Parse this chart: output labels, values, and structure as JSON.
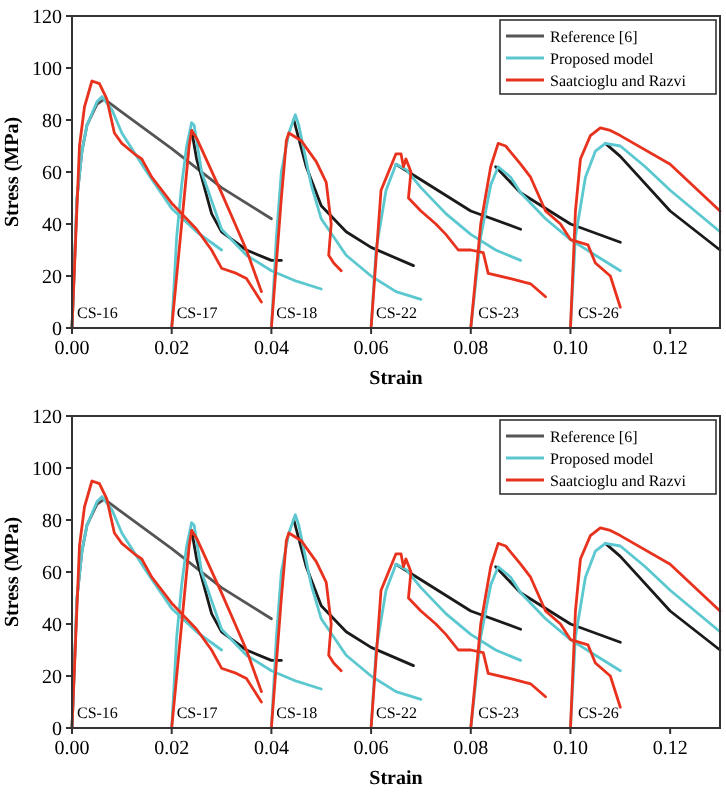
{
  "chart_data": [
    {
      "type": "line",
      "xlabel": "Strain",
      "ylabel": "Stress (MPa)",
      "xlim": [
        0,
        0.13
      ],
      "ylim": [
        0,
        120
      ],
      "xticks": [
        {
          "value": 0,
          "label": "0.00"
        },
        {
          "value": 0.02,
          "label": "0.02"
        },
        {
          "value": 0.04,
          "label": "0.04"
        },
        {
          "value": 0.06,
          "label": "0.06"
        },
        {
          "value": 0.08,
          "label": "0.08"
        },
        {
          "value": 0.1,
          "label": "0.10"
        },
        {
          "value": 0.12,
          "label": "0.12"
        }
      ],
      "yticks": [
        0,
        20,
        40,
        60,
        80,
        100,
        120
      ],
      "grid": false,
      "legend": "top right",
      "marker": "none",
      "line_style": "solid",
      "annotations": [
        {
          "text": "CS-16",
          "x": 0.001,
          "y": 4
        },
        {
          "text": "CS-17",
          "x": 0.021,
          "y": 4
        },
        {
          "text": "CS-18",
          "x": 0.041,
          "y": 4
        },
        {
          "text": "CS-22",
          "x": 0.061,
          "y": 4
        },
        {
          "text": "CS-23",
          "x": 0.0815,
          "y": 4
        },
        {
          "text": "CS-26",
          "x": 0.1015,
          "y": 4
        }
      ],
      "series": [
        {
          "name": "Reference [6]",
          "color": "#555555",
          "x": [
            0,
            0.001,
            0.002,
            0.003,
            0.005,
            0.0065,
            0.01,
            0.02,
            0.03,
            0.04
          ],
          "values": [
            0,
            50,
            68,
            78,
            86,
            88,
            83,
            69,
            54,
            42
          ]
        },
        {
          "color": "#1a1a1a",
          "x": [
            0.024,
            0.025,
            0.028,
            0.03,
            0.035,
            0.04,
            0.042
          ],
          "values": [
            76,
            65,
            44,
            37,
            30,
            26,
            26
          ]
        },
        {
          "color": "#1a1a1a",
          "x": [
            0.0445,
            0.047,
            0.05,
            0.055,
            0.06,
            0.0685
          ],
          "values": [
            80,
            62,
            47,
            37,
            31,
            24
          ]
        },
        {
          "color": "#1a1a1a",
          "x": [
            0.065,
            0.07,
            0.08,
            0.09
          ],
          "values": [
            63,
            57,
            45,
            38
          ]
        },
        {
          "color": "#1a1a1a",
          "x": [
            0.085,
            0.09,
            0.1,
            0.11
          ],
          "values": [
            62,
            52,
            40,
            33
          ]
        },
        {
          "color": "#1a1a1a",
          "x": [
            0.107,
            0.11,
            0.12,
            0.13
          ],
          "values": [
            71,
            66,
            45,
            30
          ]
        },
        {
          "name": "Proposed model",
          "color": "#5bc8d0",
          "x": [
            0,
            0.001,
            0.002,
            0.003,
            0.005,
            0.006,
            0.008,
            0.01,
            0.015,
            0.02,
            0.025,
            0.03
          ],
          "values": [
            0,
            50,
            68,
            78,
            87,
            89,
            84,
            75,
            60,
            46,
            37,
            30
          ]
        },
        {
          "color": "#5bc8d0",
          "x": [
            0.02,
            0.021,
            0.022,
            0.023,
            0.024,
            0.0245,
            0.026,
            0.03,
            0.035,
            0.04,
            0.045,
            0.05
          ],
          "values": [
            0,
            35,
            55,
            70,
            79,
            78,
            60,
            38,
            28,
            22,
            18,
            15
          ]
        },
        {
          "color": "#5bc8d0",
          "x": [
            0.04,
            0.041,
            0.042,
            0.0435,
            0.0448,
            0.0455,
            0.048,
            0.05,
            0.055,
            0.06,
            0.065,
            0.07
          ],
          "values": [
            0,
            35,
            60,
            75,
            82,
            78,
            55,
            42,
            28,
            20,
            14,
            11
          ]
        },
        {
          "color": "#5bc8d0",
          "x": [
            0.06,
            0.061,
            0.063,
            0.065,
            0.067,
            0.07,
            0.075,
            0.08,
            0.085,
            0.09
          ],
          "values": [
            0,
            30,
            53,
            63,
            61,
            54,
            44,
            36,
            30,
            26
          ]
        },
        {
          "color": "#5bc8d0",
          "x": [
            0.08,
            0.082,
            0.084,
            0.0855,
            0.088,
            0.09,
            0.095,
            0.1,
            0.105,
            0.11
          ],
          "values": [
            0,
            35,
            55,
            62,
            58,
            52,
            42,
            34,
            28,
            22
          ]
        },
        {
          "color": "#5bc8d0",
          "x": [
            0.1,
            0.101,
            0.103,
            0.105,
            0.107,
            0.11,
            0.115,
            0.12,
            0.125,
            0.13
          ],
          "values": [
            0,
            35,
            58,
            68,
            71,
            70,
            62,
            53,
            45,
            37
          ]
        },
        {
          "name": "Saatcioglu and Razvi",
          "color": "#e8321e",
          "x": [
            0,
            0.0015,
            0.0025,
            0.004,
            0.0055,
            0.007,
            0.0085,
            0.01,
            0.0125,
            0.014,
            0.016,
            0.02,
            0.025,
            0.028,
            0.03,
            0.033,
            0.035,
            0.038
          ],
          "values": [
            0,
            70,
            85,
            95,
            94,
            88,
            75,
            71,
            67,
            65,
            58,
            48,
            38,
            30,
            23,
            21,
            19,
            10
          ]
        },
        {
          "color": "#e8321e",
          "x": [
            0.02,
            0.022,
            0.0235,
            0.024,
            0.025,
            0.03,
            0.035,
            0.038
          ],
          "values": [
            0,
            40,
            70,
            76,
            73,
            52,
            30,
            14
          ]
        },
        {
          "color": "#e8321e",
          "x": [
            0.04,
            0.042,
            0.043,
            0.0435,
            0.046,
            0.049,
            0.051,
            0.052,
            0.0515,
            0.0525,
            0.054
          ],
          "values": [
            0,
            50,
            72,
            75,
            72,
            64,
            56,
            40,
            28,
            25,
            22
          ]
        },
        {
          "color": "#e8321e",
          "x": [
            0.06,
            0.0615,
            0.062,
            0.0635,
            0.065,
            0.066,
            0.0665,
            0.067,
            0.068,
            0.0675,
            0.07,
            0.073,
            0.075,
            0.0775,
            0.08,
            0.0825,
            0.0835,
            0.088,
            0.092,
            0.095
          ],
          "values": [
            0,
            40,
            53,
            60,
            67,
            67,
            62,
            65,
            60,
            50,
            45,
            40,
            36,
            30,
            30,
            29,
            21,
            19,
            17,
            12
          ]
        },
        {
          "color": "#e8321e",
          "x": [
            0.08,
            0.082,
            0.084,
            0.0855,
            0.087,
            0.09,
            0.092,
            0.095,
            0.098,
            0.1,
            0.1035,
            0.105,
            0.108,
            0.11
          ],
          "values": [
            0,
            40,
            62,
            71,
            70,
            63,
            58,
            45,
            40,
            34,
            32,
            25,
            20,
            8
          ]
        },
        {
          "color": "#e8321e",
          "x": [
            0.1,
            0.101,
            0.102,
            0.104,
            0.106,
            0.108,
            0.11,
            0.12,
            0.13
          ],
          "values": [
            0,
            45,
            65,
            74,
            77,
            76,
            74,
            63,
            45
          ]
        }
      ]
    },
    {
      "type": "line",
      "xlabel": "Strain",
      "ylabel": "Stress (MPa)",
      "xlim": [
        0,
        0.13
      ],
      "ylim": [
        0,
        120
      ],
      "xticks": [
        {
          "value": 0,
          "label": "0.00"
        },
        {
          "value": 0.02,
          "label": "0.02"
        },
        {
          "value": 0.04,
          "label": "0.04"
        },
        {
          "value": 0.06,
          "label": "0.06"
        },
        {
          "value": 0.08,
          "label": "0.08"
        },
        {
          "value": 0.1,
          "label": "0.10"
        },
        {
          "value": 0.12,
          "label": "0.12"
        }
      ],
      "yticks": [
        0,
        20,
        40,
        60,
        80,
        100,
        120
      ],
      "grid": false,
      "legend": "top right",
      "marker": "none",
      "line_style": "solid",
      "annotations": [
        {
          "text": "CS-16",
          "x": 0.001,
          "y": 4
        },
        {
          "text": "CS-17",
          "x": 0.021,
          "y": 4
        },
        {
          "text": "CS-18",
          "x": 0.041,
          "y": 4
        },
        {
          "text": "CS-22",
          "x": 0.061,
          "y": 4
        },
        {
          "text": "CS-23",
          "x": 0.0815,
          "y": 4
        },
        {
          "text": "CS-26",
          "x": 0.1015,
          "y": 4
        }
      ],
      "series": [
        {
          "name": "Reference [6]",
          "color": "#555555",
          "x": [
            0,
            0.001,
            0.002,
            0.003,
            0.005,
            0.0065,
            0.01,
            0.02,
            0.03,
            0.04
          ],
          "values": [
            0,
            50,
            68,
            78,
            86,
            88,
            83,
            69,
            54,
            42
          ]
        },
        {
          "color": "#1a1a1a",
          "x": [
            0.024,
            0.025,
            0.028,
            0.03,
            0.035,
            0.04,
            0.042
          ],
          "values": [
            76,
            65,
            44,
            37,
            30,
            26,
            26
          ]
        },
        {
          "color": "#1a1a1a",
          "x": [
            0.0445,
            0.047,
            0.05,
            0.055,
            0.06,
            0.0685
          ],
          "values": [
            80,
            62,
            47,
            37,
            31,
            24
          ]
        },
        {
          "color": "#1a1a1a",
          "x": [
            0.065,
            0.07,
            0.08,
            0.09
          ],
          "values": [
            63,
            57,
            45,
            38
          ]
        },
        {
          "color": "#1a1a1a",
          "x": [
            0.085,
            0.09,
            0.1,
            0.11
          ],
          "values": [
            62,
            52,
            40,
            33
          ]
        },
        {
          "color": "#1a1a1a",
          "x": [
            0.107,
            0.11,
            0.12,
            0.13
          ],
          "values": [
            71,
            66,
            45,
            30
          ]
        },
        {
          "name": "Proposed model",
          "color": "#5bc8d0",
          "x": [
            0,
            0.001,
            0.002,
            0.003,
            0.005,
            0.006,
            0.008,
            0.01,
            0.015,
            0.02,
            0.025,
            0.03
          ],
          "values": [
            0,
            50,
            68,
            78,
            87,
            89,
            84,
            75,
            60,
            46,
            37,
            30
          ]
        },
        {
          "color": "#5bc8d0",
          "x": [
            0.02,
            0.021,
            0.022,
            0.023,
            0.024,
            0.0245,
            0.026,
            0.03,
            0.035,
            0.04,
            0.045,
            0.05
          ],
          "values": [
            0,
            35,
            55,
            70,
            79,
            78,
            60,
            38,
            28,
            22,
            18,
            15
          ]
        },
        {
          "color": "#5bc8d0",
          "x": [
            0.04,
            0.041,
            0.042,
            0.0435,
            0.0448,
            0.0455,
            0.048,
            0.05,
            0.055,
            0.06,
            0.065,
            0.07
          ],
          "values": [
            0,
            35,
            60,
            75,
            82,
            78,
            55,
            42,
            28,
            20,
            14,
            11
          ]
        },
        {
          "color": "#5bc8d0",
          "x": [
            0.06,
            0.061,
            0.063,
            0.065,
            0.067,
            0.07,
            0.075,
            0.08,
            0.085,
            0.09
          ],
          "values": [
            0,
            30,
            53,
            63,
            61,
            54,
            44,
            36,
            30,
            26
          ]
        },
        {
          "color": "#5bc8d0",
          "x": [
            0.08,
            0.082,
            0.084,
            0.0855,
            0.088,
            0.09,
            0.095,
            0.1,
            0.105,
            0.11
          ],
          "values": [
            0,
            35,
            55,
            62,
            58,
            52,
            42,
            34,
            28,
            22
          ]
        },
        {
          "color": "#5bc8d0",
          "x": [
            0.1,
            0.101,
            0.103,
            0.105,
            0.107,
            0.11,
            0.115,
            0.12,
            0.125,
            0.13
          ],
          "values": [
            0,
            35,
            58,
            68,
            71,
            70,
            62,
            53,
            45,
            37
          ]
        },
        {
          "name": "Saatcioglu and Razvi",
          "color": "#e8321e",
          "x": [
            0,
            0.0015,
            0.0025,
            0.004,
            0.0055,
            0.007,
            0.0085,
            0.01,
            0.0125,
            0.014,
            0.016,
            0.02,
            0.025,
            0.028,
            0.03,
            0.033,
            0.035,
            0.038
          ],
          "values": [
            0,
            70,
            85,
            95,
            94,
            88,
            75,
            71,
            67,
            65,
            58,
            48,
            38,
            30,
            23,
            21,
            19,
            10
          ]
        },
        {
          "color": "#e8321e",
          "x": [
            0.02,
            0.022,
            0.0235,
            0.024,
            0.025,
            0.03,
            0.035,
            0.038
          ],
          "values": [
            0,
            40,
            70,
            76,
            73,
            52,
            30,
            14
          ]
        },
        {
          "color": "#e8321e",
          "x": [
            0.04,
            0.042,
            0.043,
            0.0435,
            0.046,
            0.049,
            0.051,
            0.052,
            0.0515,
            0.0525,
            0.054
          ],
          "values": [
            0,
            50,
            72,
            75,
            72,
            64,
            56,
            40,
            28,
            25,
            22
          ]
        },
        {
          "color": "#e8321e",
          "x": [
            0.06,
            0.0615,
            0.062,
            0.0635,
            0.065,
            0.066,
            0.0665,
            0.067,
            0.068,
            0.0675,
            0.07,
            0.073,
            0.075,
            0.0775,
            0.08,
            0.0825,
            0.0835,
            0.088,
            0.092,
            0.095
          ],
          "values": [
            0,
            40,
            53,
            60,
            67,
            67,
            62,
            65,
            60,
            50,
            45,
            40,
            36,
            30,
            30,
            29,
            21,
            19,
            17,
            12
          ]
        },
        {
          "color": "#e8321e",
          "x": [
            0.08,
            0.082,
            0.084,
            0.0855,
            0.087,
            0.09,
            0.092,
            0.095,
            0.098,
            0.1,
            0.1035,
            0.105,
            0.108,
            0.11
          ],
          "values": [
            0,
            40,
            62,
            71,
            70,
            63,
            58,
            45,
            40,
            34,
            32,
            25,
            20,
            8
          ]
        },
        {
          "color": "#e8321e",
          "x": [
            0.1,
            0.101,
            0.102,
            0.104,
            0.106,
            0.108,
            0.11,
            0.12,
            0.13
          ],
          "values": [
            0,
            45,
            65,
            74,
            77,
            76,
            74,
            63,
            45
          ]
        }
      ]
    }
  ]
}
